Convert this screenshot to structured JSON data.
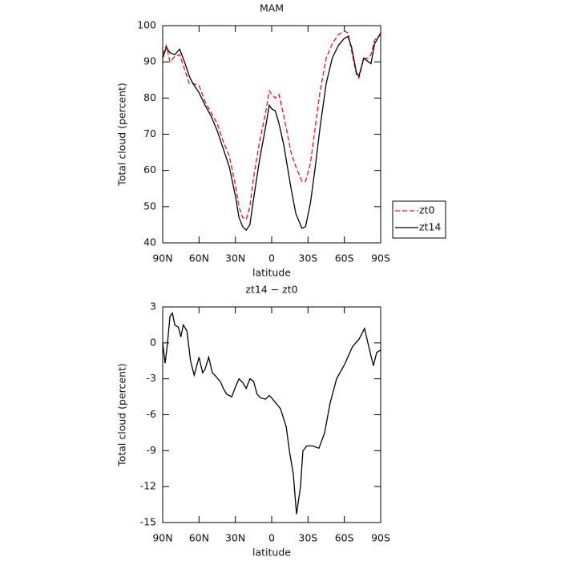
{
  "chart_data": [
    {
      "type": "line",
      "title": "MAM",
      "x_label": "latitude",
      "y_label": "Total cloud (percent)",
      "x": [
        90,
        87,
        84,
        80,
        76,
        72,
        68,
        65,
        60,
        55,
        50,
        45,
        40,
        35,
        30,
        27,
        24,
        21,
        18,
        15,
        10,
        5,
        2,
        0,
        -3,
        -6,
        -10,
        -13,
        -16,
        -20,
        -25,
        -28,
        -32,
        -36,
        -40,
        -45,
        -50,
        -55,
        -60,
        -63,
        -66,
        -70,
        -72,
        -76,
        -80,
        -82,
        -85,
        -90
      ],
      "series": [
        {
          "name": "zt0",
          "color": "#e8141c",
          "dash": true,
          "values": [
            92,
            94.5,
            90,
            91.5,
            92,
            88,
            84,
            84,
            83.5,
            79,
            76,
            73,
            68,
            64,
            56,
            50,
            47,
            46.5,
            50,
            58,
            68,
            76,
            82,
            81,
            80,
            81,
            75,
            70,
            65,
            61,
            57,
            57,
            62,
            72,
            82,
            91,
            95,
            97.5,
            98.5,
            98,
            93,
            86.5,
            85.5,
            91,
            91,
            92,
            96,
            97.5
          ]
        },
        {
          "name": "zt14",
          "color": "#000000",
          "dash": false,
          "values": [
            91,
            94,
            92.5,
            92,
            93.5,
            90,
            86,
            84,
            81.5,
            78,
            75,
            71,
            66,
            61,
            53,
            47,
            44.5,
            43.5,
            45,
            52,
            63,
            72,
            78,
            77,
            76.5,
            73,
            67,
            61,
            55,
            48,
            44,
            44.5,
            51,
            61,
            72,
            84,
            91,
            94.5,
            96.5,
            97,
            94,
            87,
            86,
            91,
            90,
            89.5,
            95,
            98
          ]
        }
      ],
      "xlim": [
        90,
        -90
      ],
      "xticks": [
        {
          "value": 90,
          "label": "90N"
        },
        {
          "value": 60,
          "label": "60N"
        },
        {
          "value": 30,
          "label": "30N"
        },
        0,
        {
          "value": -30,
          "label": "30S"
        },
        {
          "value": -60,
          "label": "60S"
        },
        {
          "value": -90,
          "label": "90S"
        }
      ],
      "ylim": [
        40,
        100
      ],
      "yticks": [
        40,
        50,
        60,
        70,
        80,
        90,
        100
      ],
      "legend": "right"
    },
    {
      "type": "line",
      "title": "zt14 − zt0",
      "x_label": "latitude",
      "y_label": "Total cloud (percent)",
      "x": [
        90,
        88,
        86,
        84,
        82,
        80,
        77,
        75,
        73,
        70,
        67,
        64,
        60,
        57,
        55,
        52,
        49,
        46,
        42,
        40,
        37,
        33,
        30,
        27,
        24,
        21,
        18,
        15,
        12,
        9,
        5,
        2,
        0,
        -7.3,
        -12,
        -14.6,
        -17.9,
        -20.5,
        -23.8,
        -25.8,
        -29.1,
        -33.8,
        -39,
        -43.7,
        -48.3,
        -53.6,
        -60.2,
        -66.8,
        -72.1,
        -76.7,
        -81.3,
        -84,
        -86.7,
        -90
      ],
      "series": [
        {
          "name": "zt14 − zt0",
          "color": "#000000",
          "dash": false,
          "values": [
            0,
            -1.7,
            0,
            2.2,
            2.5,
            1.5,
            1.3,
            0.5,
            1.5,
            1,
            -1.5,
            -2.7,
            -1.2,
            -2.5,
            -2.2,
            -1.2,
            -2.5,
            -2.8,
            -3.3,
            -3.8,
            -4.3,
            -4.5,
            -3.7,
            -3,
            -3.3,
            -3.8,
            -3,
            -3.2,
            -4.3,
            -4.6,
            -4.7,
            -4.4,
            -4.6,
            -5.5,
            -7,
            -9,
            -11,
            -14.3,
            -12,
            -9,
            -8.6,
            -8.6,
            -8.8,
            -7.5,
            -5,
            -3,
            -1.8,
            -0.3,
            0.3,
            1.2,
            -0.8,
            -1.9,
            -0.8,
            -0.6
          ]
        }
      ],
      "xlim": [
        90,
        -90
      ],
      "xticks": [
        {
          "value": 90,
          "label": "90N"
        },
        {
          "value": 60,
          "label": "60N"
        },
        {
          "value": 30,
          "label": "30N"
        },
        0,
        {
          "value": -30,
          "label": "30S"
        },
        {
          "value": -60,
          "label": "60S"
        },
        {
          "value": -90,
          "label": "90S"
        }
      ],
      "ylim": [
        -15,
        3
      ],
      "yticks": [
        -15,
        -12,
        -9,
        -6,
        -3,
        0,
        3
      ]
    }
  ]
}
